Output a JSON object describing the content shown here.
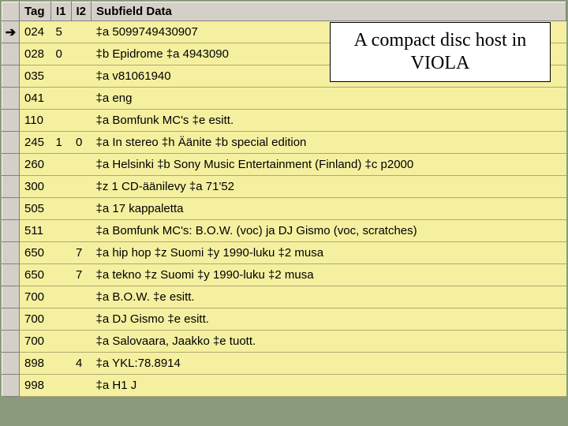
{
  "colors": {
    "header_bg": "#d4d0c8",
    "row_bg": "#f5f0a0",
    "page_bg": "#8a9a7a",
    "border_dark": "#808080",
    "border_light": "#ffffff",
    "row_border": "#b0a870",
    "callout_bg": "#ffffff"
  },
  "columns": {
    "tag": "Tag",
    "i1": "I1",
    "i2": "I2",
    "subfield": "Subfield Data"
  },
  "rows": [
    {
      "marker": "arrow",
      "tag": "024",
      "i1": "5",
      "i2": "",
      "data": "‡a 5099749430907"
    },
    {
      "marker": "",
      "tag": "028",
      "i1": "0",
      "i2": "",
      "data": "‡b Epidrome ‡a 4943090"
    },
    {
      "marker": "",
      "tag": "035",
      "i1": "",
      "i2": "",
      "data": "‡a v81061940"
    },
    {
      "marker": "",
      "tag": "041",
      "i1": "",
      "i2": "",
      "data": "‡a eng"
    },
    {
      "marker": "",
      "tag": "110",
      "i1": "",
      "i2": "",
      "data": "‡a Bomfunk MC's ‡e esitt."
    },
    {
      "marker": "",
      "tag": "245",
      "i1": "1",
      "i2": "0",
      "data": "‡a In stereo ‡h Äänite ‡b special edition"
    },
    {
      "marker": "",
      "tag": "260",
      "i1": "",
      "i2": "",
      "data": "‡a Helsinki ‡b Sony Music Entertainment (Finland) ‡c p2000"
    },
    {
      "marker": "",
      "tag": "300",
      "i1": "",
      "i2": "",
      "data": "‡z 1 CD-äänilevy ‡a 71'52"
    },
    {
      "marker": "",
      "tag": "505",
      "i1": "",
      "i2": "",
      "data": "‡a 17 kappaletta"
    },
    {
      "marker": "",
      "tag": "511",
      "i1": "",
      "i2": "",
      "data": "‡a Bomfunk MC's: B.O.W. (voc) ja DJ Gismo (voc, scratches)"
    },
    {
      "marker": "",
      "tag": "650",
      "i1": "",
      "i2": "7",
      "data": "‡a hip hop ‡z Suomi ‡y 1990-luku ‡2 musa"
    },
    {
      "marker": "",
      "tag": "650",
      "i1": "",
      "i2": "7",
      "data": "‡a tekno ‡z Suomi ‡y 1990-luku ‡2 musa"
    },
    {
      "marker": "",
      "tag": "700",
      "i1": "",
      "i2": "",
      "data": "‡a B.O.W. ‡e esitt."
    },
    {
      "marker": "",
      "tag": "700",
      "i1": "",
      "i2": "",
      "data": "‡a DJ Gismo ‡e esitt."
    },
    {
      "marker": "",
      "tag": "700",
      "i1": "",
      "i2": "",
      "data": "‡a Salovaara, Jaakko ‡e tuott."
    },
    {
      "marker": "",
      "tag": "898",
      "i1": "",
      "i2": "4",
      "data": "‡a YKL:78.8914"
    },
    {
      "marker": "",
      "tag": "998",
      "i1": "",
      "i2": "",
      "data": "‡a H1 J"
    }
  ],
  "callout": {
    "text": "A compact disc host in VIOLA",
    "font_family": "Times New Roman",
    "font_size_pt": 24
  }
}
